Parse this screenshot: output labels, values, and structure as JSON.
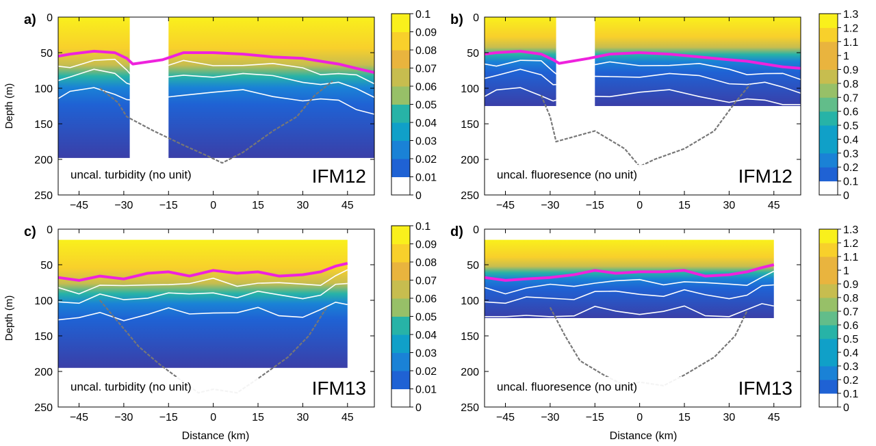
{
  "figure": {
    "xlabel": "Distance (km)",
    "ylabel": "Depth (m)"
  },
  "colors": {
    "mixed_layer": "#ee22dd",
    "isoline": "#ffffff",
    "bathymetry": "#777777",
    "colormap": [
      "#3a3fa8",
      "#1f62d4",
      "#1a82d6",
      "#10a0c8",
      "#27b3a7",
      "#62bd8a",
      "#97c068",
      "#c7bd4f",
      "#e9b43e",
      "#f8d02b",
      "#f9f01c"
    ]
  },
  "chart_data": [
    {
      "panel": "a)",
      "type": "heatmap",
      "variable_label": "uncal. turbidity (no unit)",
      "cruise": "IFM12",
      "xlim": [
        -52,
        54
      ],
      "ylim": [
        250,
        0
      ],
      "xticks": [
        -45,
        -30,
        -15,
        0,
        15,
        30,
        45
      ],
      "yticks": [
        0,
        50,
        100,
        150,
        200,
        250
      ],
      "data_depth_max": 198,
      "gap": [
        -28,
        -15
      ],
      "colorbar": {
        "ticks": [
          "0",
          "0.01",
          "0.02",
          "0.03",
          "0.04",
          "0.05",
          "0.06",
          "0.07",
          "0.08",
          "0.09",
          "0.1"
        ],
        "max": 0.1
      },
      "mixed_layer_depth": {
        "x": [
          -52,
          -48,
          -40,
          -33,
          -29,
          -27,
          -17,
          -10,
          0,
          10,
          20,
          30,
          36,
          42,
          48,
          54
        ],
        "y": [
          55,
          52,
          48,
          50,
          58,
          66,
          60,
          50,
          50,
          52,
          56,
          58,
          62,
          66,
          72,
          78
        ]
      },
      "bathymetry": {
        "x": [
          -38,
          -32,
          -29,
          -20,
          -10,
          -2,
          3,
          10,
          20,
          28,
          34,
          40
        ],
        "y": [
          100,
          120,
          140,
          160,
          180,
          195,
          205,
          190,
          160,
          140,
          110,
          90
        ]
      }
    },
    {
      "panel": "b)",
      "type": "heatmap",
      "variable_label": "uncal. fluoresence (no unit)",
      "cruise": "IFM12",
      "xlim": [
        -52,
        54
      ],
      "ylim": [
        250,
        0
      ],
      "xticks": [
        -45,
        -30,
        -15,
        0,
        15,
        30,
        45
      ],
      "yticks": [
        0,
        50,
        100,
        150,
        200,
        250
      ],
      "data_depth_max": 125,
      "gap": [
        -28,
        -15
      ],
      "colorbar": {
        "ticks": [
          "0",
          "0.1",
          "0.2",
          "0.3",
          "0.4",
          "0.5",
          "0.6",
          "0.7",
          "0.8",
          "0.9",
          "1",
          "1.1",
          "1.2",
          "1.3"
        ],
        "max": 1.3
      },
      "mixed_layer_depth": {
        "x": [
          -52,
          -48,
          -40,
          -33,
          -29,
          -27,
          -17,
          -10,
          0,
          10,
          20,
          30,
          36,
          42,
          48,
          54
        ],
        "y": [
          52,
          50,
          48,
          52,
          60,
          65,
          58,
          52,
          50,
          52,
          56,
          60,
          62,
          66,
          70,
          72
        ]
      },
      "bathymetry": {
        "x": [
          -33,
          -30,
          -28,
          -15,
          -5,
          0,
          5,
          15,
          25,
          32,
          37
        ],
        "y": [
          110,
          140,
          175,
          160,
          185,
          210,
          200,
          185,
          160,
          120,
          95
        ]
      }
    },
    {
      "panel": "c)",
      "type": "heatmap",
      "variable_label": "uncal. turbidity (no unit)",
      "cruise": "IFM13",
      "xlim": [
        -52,
        54
      ],
      "ylim": [
        250,
        0
      ],
      "xticks": [
        -45,
        -30,
        -15,
        0,
        15,
        30,
        45
      ],
      "yticks": [
        0,
        50,
        100,
        150,
        200,
        250
      ],
      "data_depth_max": 195,
      "data_x_max": 45,
      "colorbar": {
        "ticks": [
          "0",
          "0.01",
          "0.02",
          "0.03",
          "0.04",
          "0.05",
          "0.06",
          "0.07",
          "0.08",
          "0.09",
          "0.1"
        ],
        "max": 0.1
      },
      "mixed_layer_depth": {
        "x": [
          -52,
          -45,
          -38,
          -30,
          -22,
          -15,
          -8,
          0,
          8,
          15,
          22,
          30,
          36,
          41,
          45
        ],
        "y": [
          68,
          72,
          66,
          70,
          62,
          60,
          66,
          58,
          62,
          60,
          66,
          64,
          60,
          52,
          48
        ]
      },
      "bathymetry": {
        "x": [
          -38,
          -32,
          -25,
          -18,
          -10,
          -5,
          0,
          8,
          15,
          25,
          32,
          38
        ],
        "y": [
          100,
          130,
          165,
          190,
          215,
          230,
          225,
          230,
          210,
          180,
          150,
          110
        ]
      }
    },
    {
      "panel": "d)",
      "type": "heatmap",
      "variable_label": "uncal. fluoresence (no unit)",
      "cruise": "IFM13",
      "xlim": [
        -52,
        54
      ],
      "ylim": [
        250,
        0
      ],
      "xticks": [
        -45,
        -30,
        -15,
        0,
        15,
        30,
        45
      ],
      "yticks": [
        0,
        50,
        100,
        150,
        200,
        250
      ],
      "data_depth_max": 125,
      "data_x_max": 45,
      "colorbar": {
        "ticks": [
          "0",
          "0.1",
          "0.2",
          "0.3",
          "0.4",
          "0.5",
          "0.6",
          "0.7",
          "0.8",
          "0.9",
          "1",
          "1.1",
          "1.2",
          "1.3"
        ],
        "max": 1.3
      },
      "mixed_layer_depth": {
        "x": [
          -52,
          -45,
          -38,
          -30,
          -22,
          -15,
          -8,
          0,
          8,
          15,
          22,
          30,
          36,
          41,
          45
        ],
        "y": [
          68,
          72,
          70,
          68,
          64,
          58,
          62,
          60,
          60,
          58,
          66,
          64,
          60,
          54,
          50
        ]
      },
      "bathymetry": {
        "x": [
          -30,
          -25,
          -20,
          -12,
          -5,
          0,
          8,
          15,
          25,
          32,
          36
        ],
        "y": [
          110,
          150,
          185,
          205,
          220,
          215,
          220,
          205,
          180,
          150,
          115
        ]
      }
    }
  ]
}
